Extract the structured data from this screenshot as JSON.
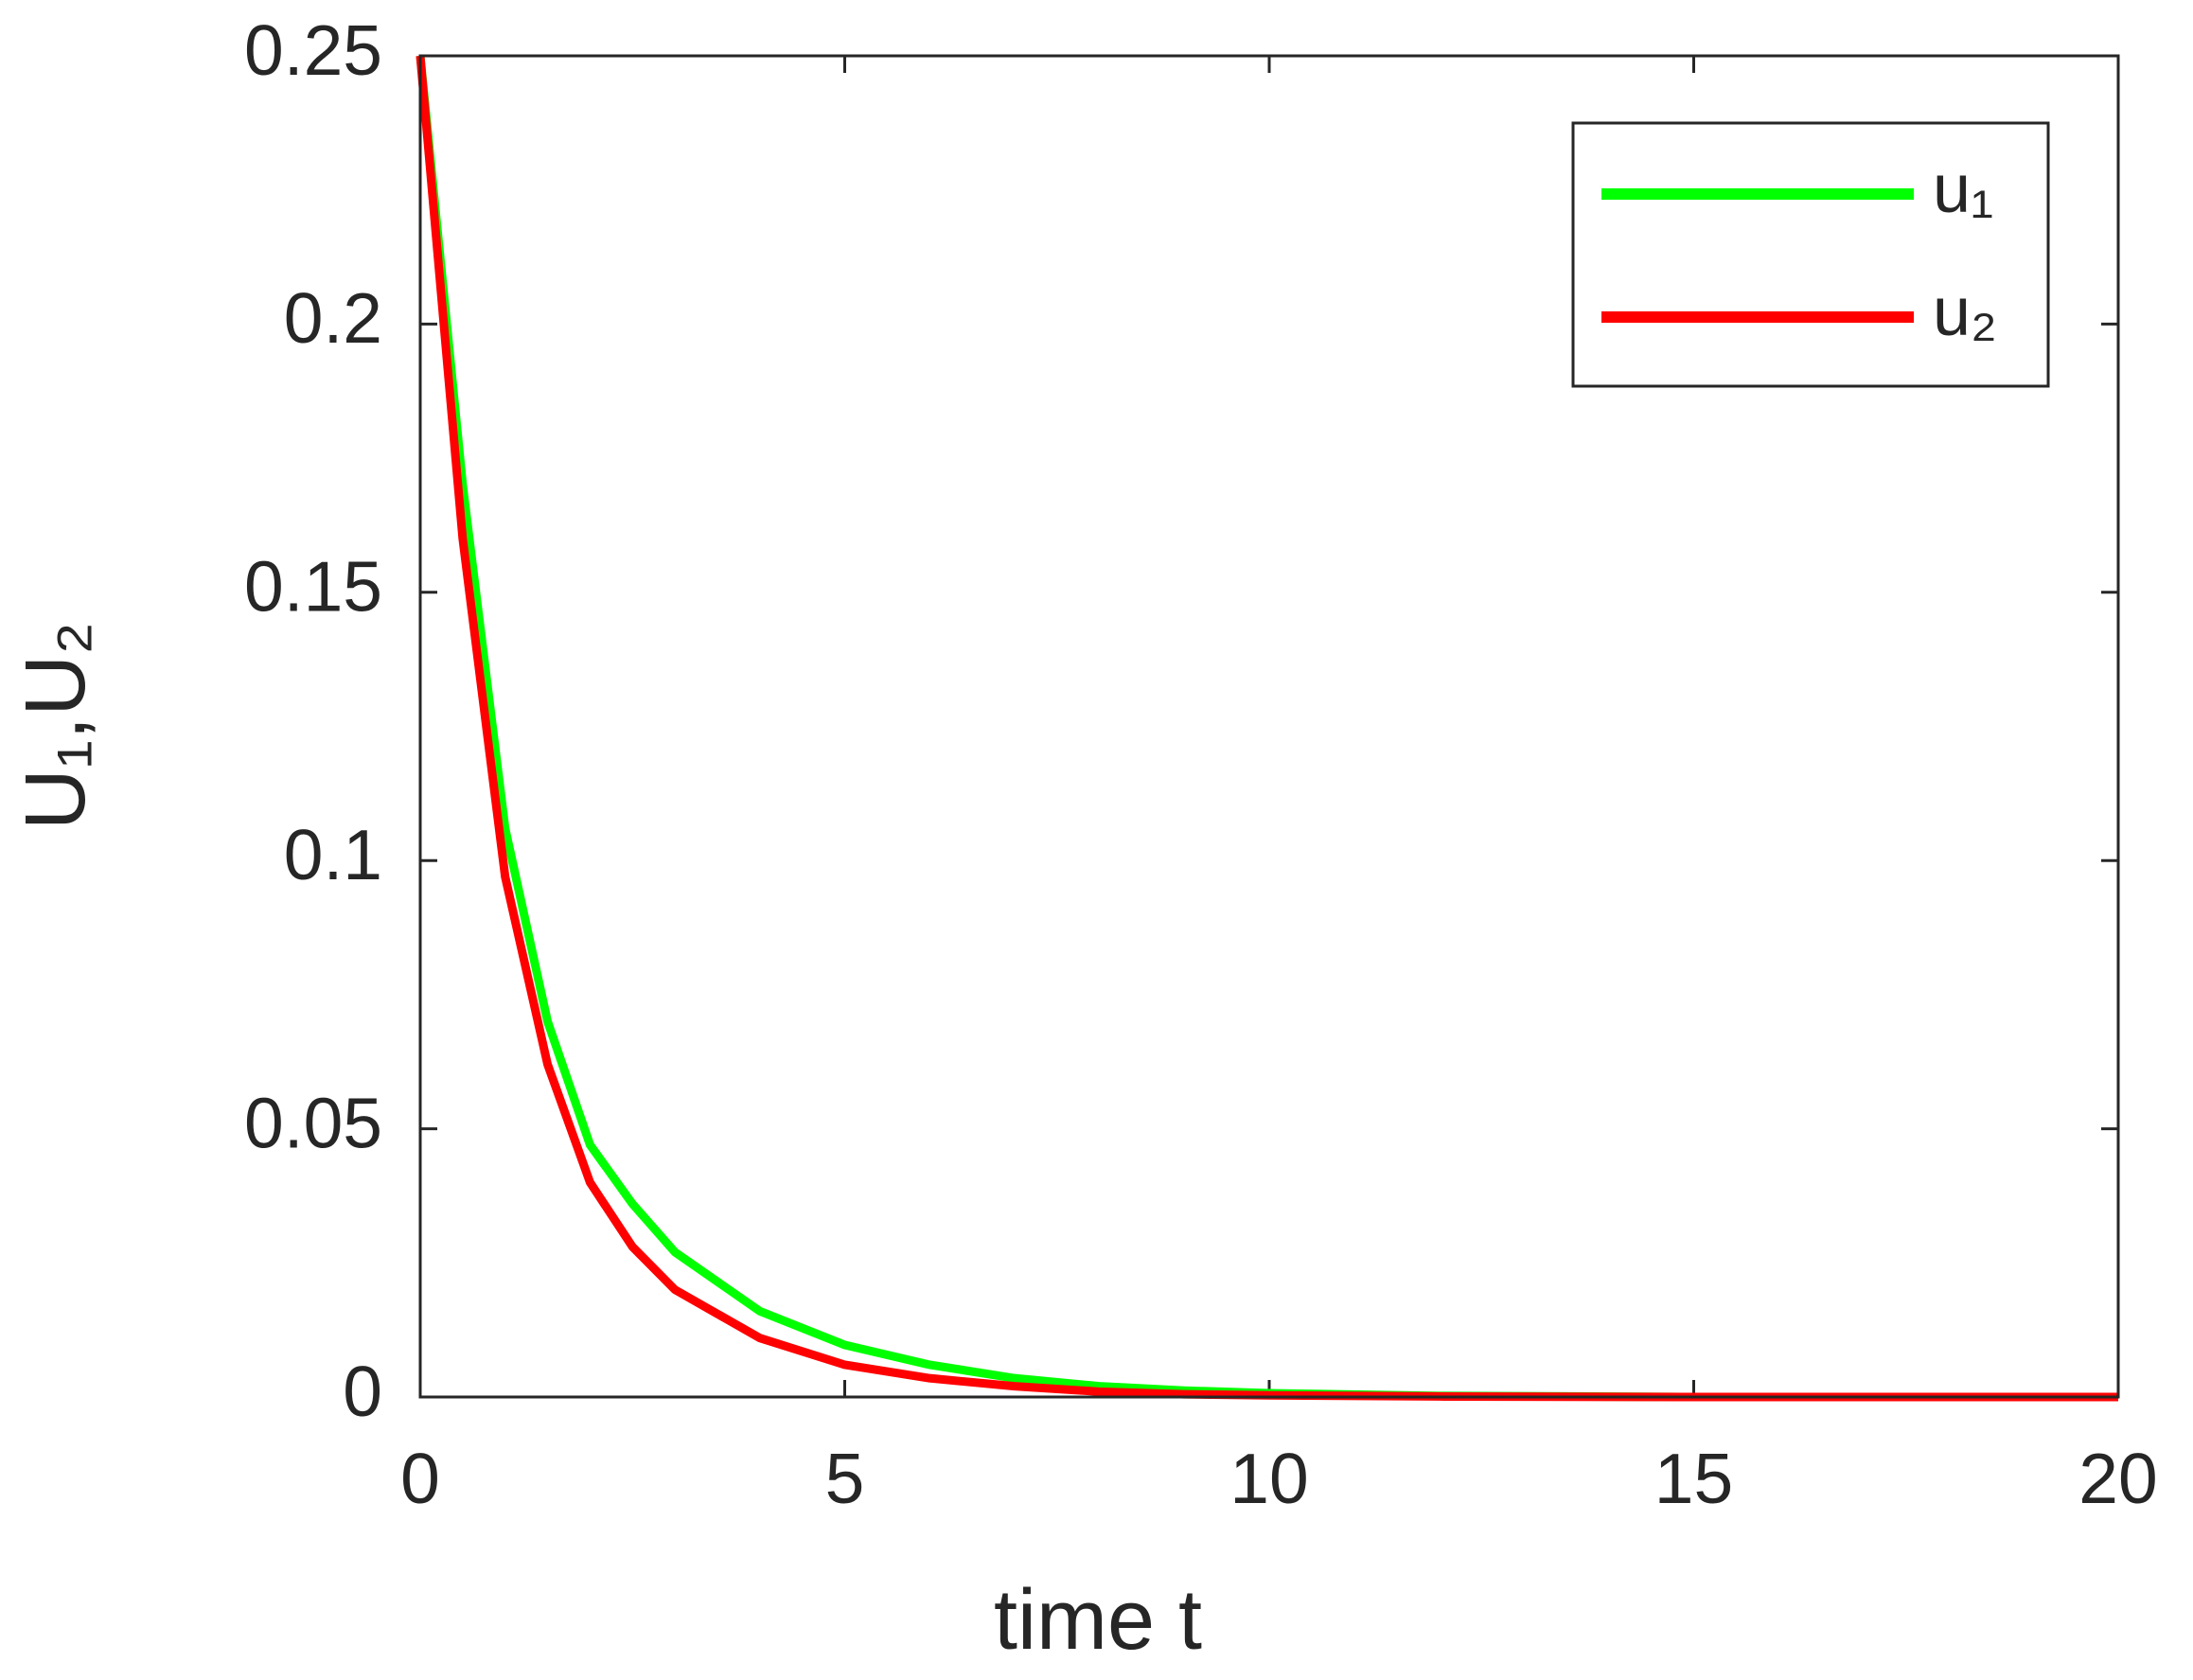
{
  "chart_data": {
    "type": "line",
    "xlabel": "time t",
    "ylabel": "U₁,U₂",
    "x": [
      0,
      0.5,
      1,
      1.5,
      2,
      2.5,
      3,
      4,
      5,
      6,
      7,
      8,
      9,
      10,
      12,
      15,
      20
    ],
    "series": [
      {
        "name": "u₁",
        "color": "#00ff00",
        "values": [
          0.25,
          0.17,
          0.106,
          0.07,
          0.047,
          0.036,
          0.027,
          0.016,
          0.0097,
          0.006,
          0.0035,
          0.002,
          0.0012,
          0.0007,
          0.0002,
          0,
          0
        ]
      },
      {
        "name": "u₂",
        "color": "#ff0000",
        "values": [
          0.25,
          0.16,
          0.097,
          0.062,
          0.04,
          0.028,
          0.02,
          0.011,
          0.006,
          0.0035,
          0.002,
          0.001,
          0.0005,
          0.0003,
          0.0001,
          0,
          0
        ]
      }
    ],
    "xlim": [
      0,
      20
    ],
    "ylim": [
      0,
      0.25
    ],
    "xticks": [
      0,
      5,
      10,
      15,
      20
    ],
    "yticks": [
      0,
      0.05,
      0.1,
      0.15,
      0.2,
      0.25
    ],
    "legend": "upper right",
    "grid": false
  }
}
